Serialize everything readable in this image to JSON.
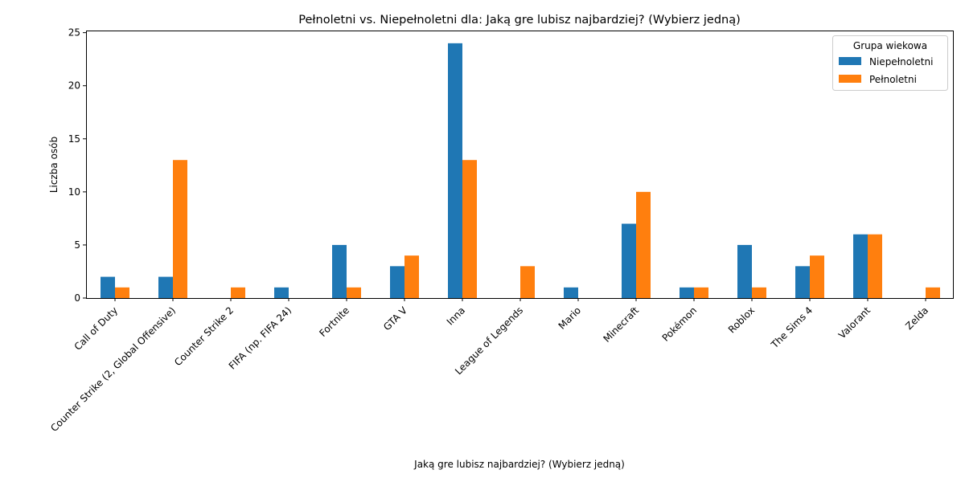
{
  "chart_data": {
    "type": "bar",
    "title": "Pełnoletni vs. Niepełnoletni dla: Jaką gre lubisz najbardziej? (Wybierz jedną)",
    "xlabel": "Jaką gre lubisz najbardziej? (Wybierz jedną)",
    "ylabel": "Liczba osób",
    "ylim": [
      0,
      25.2
    ],
    "yticks": [
      "0",
      "5",
      "10",
      "15",
      "20",
      "25"
    ],
    "grid": false,
    "categories": [
      "Call of Duty",
      "Counter Strike (2, Global Offensive)",
      "Counter Strike 2",
      "FIFA (np. FIFA 24)",
      "Fortnite",
      "GTA V",
      "Inna",
      "League of Legends",
      "Mario",
      "Minecraft",
      "Pokémon",
      "Roblox",
      "The Sims 4",
      "Valorant",
      "Zelda"
    ],
    "legend": {
      "title": "Grupa wiekowa",
      "placement": "top-right"
    },
    "series": [
      {
        "name": "Niepełnoletni",
        "color": "#1f77b4",
        "values": [
          2,
          2,
          0,
          1,
          5,
          3,
          24,
          0,
          1,
          7,
          1,
          5,
          3,
          6,
          0
        ]
      },
      {
        "name": "Pełnoletni",
        "color": "#ff7f0e",
        "values": [
          1,
          13,
          1,
          0,
          1,
          4,
          13,
          3,
          0,
          10,
          1,
          1,
          4,
          6,
          1
        ]
      }
    ]
  }
}
